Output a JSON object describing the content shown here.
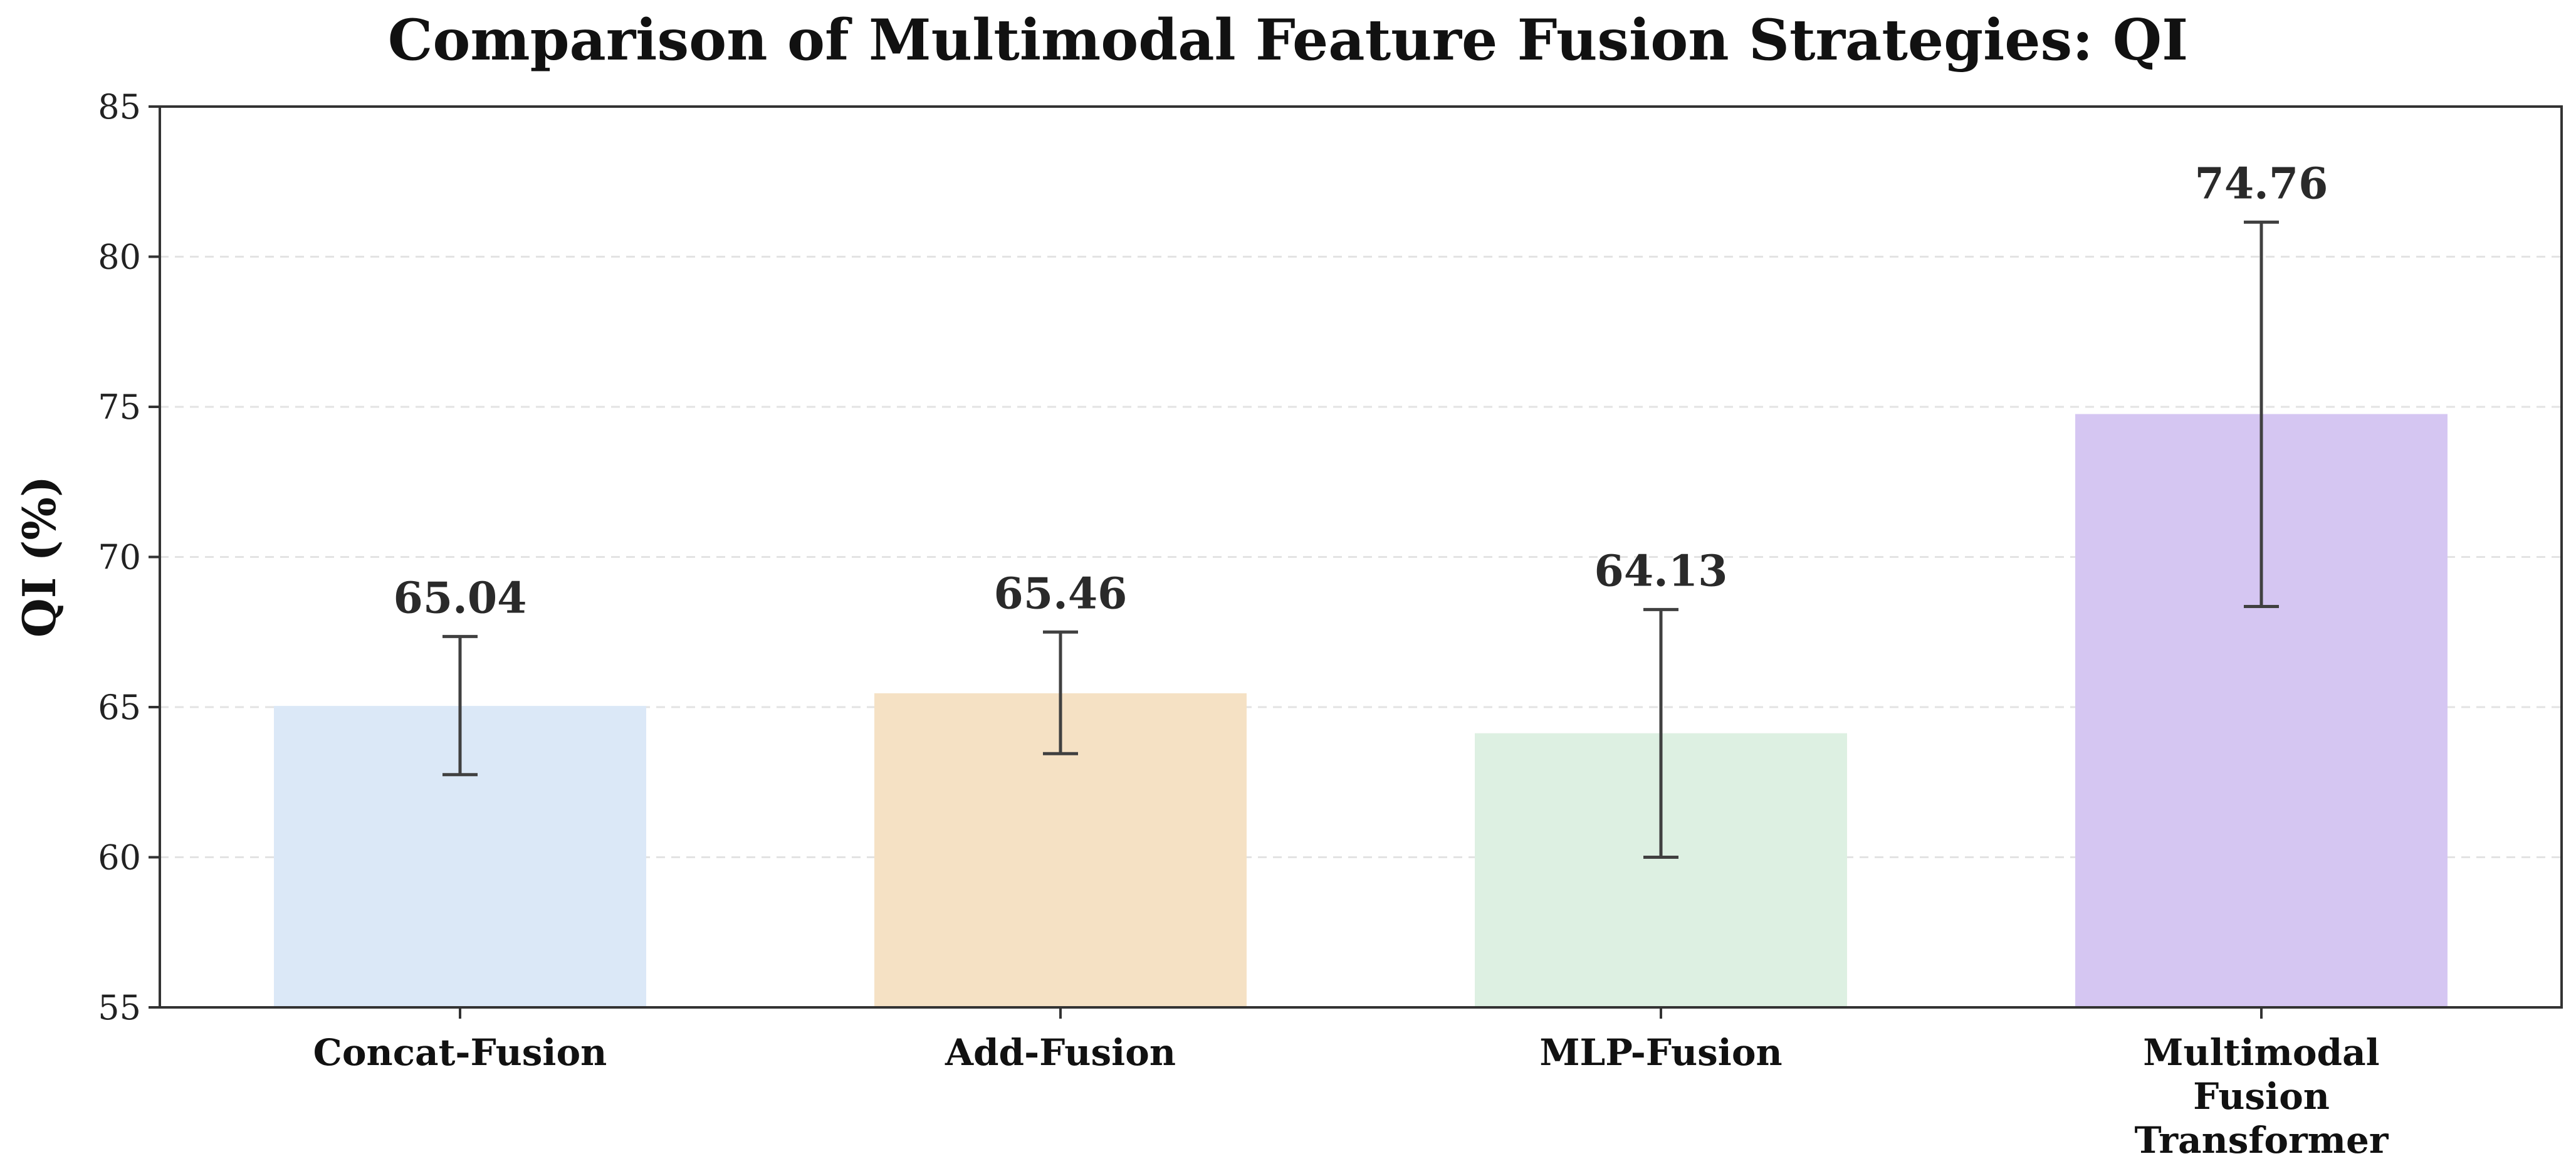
{
  "chart_data": {
    "type": "bar",
    "title": "Comparison of Multimodal Feature Fusion Strategies: QI",
    "xlabel": "",
    "ylabel": "QI (%)",
    "ylim": [
      55,
      85
    ],
    "yticks": [
      55,
      60,
      65,
      70,
      75,
      80,
      85
    ],
    "grid": "horizontal dashed",
    "categories": [
      "Concat-Fusion",
      "Add-Fusion",
      "MLP-Fusion",
      "Multimodal Fusion Transformer"
    ],
    "values": [
      65.04,
      65.46,
      64.13,
      74.76
    ],
    "value_labels": [
      "65.04",
      "65.46",
      "64.13",
      "74.76"
    ],
    "error_low": [
      62.75,
      63.45,
      60.0,
      68.35
    ],
    "error_high": [
      67.35,
      67.5,
      68.25,
      81.15
    ],
    "colors": [
      "#dbe8f7",
      "#f5e1c4",
      "#ddf0e2",
      "#d5c6f2"
    ]
  }
}
